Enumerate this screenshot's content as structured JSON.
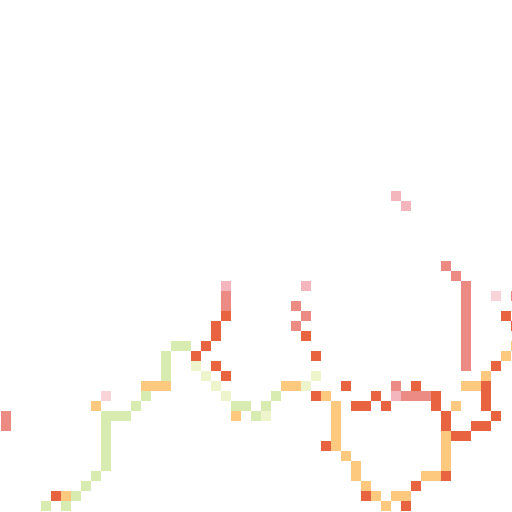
{
  "map": {
    "kind": "pixel raster tile",
    "palette": {
      "light_green": "#d8ebb0",
      "pale_yellow": "#eef4cc",
      "orange": "#fdc97f",
      "red_orange": "#e8633f",
      "salmon": "#ec8b84",
      "pink": "#f3b6bd",
      "pale_pink": "#f8d4d8"
    },
    "routes": [
      {
        "name": "green-route",
        "color": "light_green",
        "cells": [
          [
            4,
            50
          ],
          [
            6,
            50
          ],
          [
            7,
            49
          ],
          [
            8,
            48
          ],
          [
            9,
            47
          ],
          [
            10,
            46
          ],
          [
            10,
            45
          ],
          [
            10,
            44
          ],
          [
            10,
            43
          ],
          [
            10,
            42
          ],
          [
            10,
            41
          ],
          [
            11,
            41
          ],
          [
            12,
            41
          ],
          [
            13,
            40
          ],
          [
            14,
            39
          ],
          [
            16,
            37
          ],
          [
            16,
            36
          ],
          [
            16,
            35
          ],
          [
            17,
            34
          ],
          [
            18,
            34
          ],
          [
            19,
            35
          ],
          [
            20,
            37
          ],
          [
            21,
            38
          ],
          [
            22,
            39
          ],
          [
            23,
            40
          ],
          [
            24,
            40
          ],
          [
            25,
            41
          ],
          [
            26,
            40
          ],
          [
            27,
            39
          ],
          [
            28,
            38
          ]
        ]
      },
      {
        "name": "yellow-route",
        "color": "pale_yellow",
        "cells": [
          [
            19,
            36
          ],
          [
            20,
            37
          ],
          [
            21,
            38
          ],
          [
            22,
            39
          ],
          [
            26,
            41
          ],
          [
            29,
            38
          ],
          [
            30,
            38
          ],
          [
            31,
            37
          ]
        ]
      },
      {
        "name": "orange-route",
        "color": "orange",
        "cells": [
          [
            6,
            49
          ],
          [
            9,
            40
          ],
          [
            14,
            38
          ],
          [
            15,
            38
          ],
          [
            16,
            38
          ],
          [
            23,
            41
          ],
          [
            28,
            38
          ],
          [
            29,
            38
          ],
          [
            32,
            39
          ],
          [
            33,
            40
          ],
          [
            33,
            41
          ],
          [
            33,
            42
          ],
          [
            33,
            43
          ],
          [
            33,
            44
          ],
          [
            34,
            45
          ],
          [
            35,
            46
          ],
          [
            35,
            47
          ],
          [
            36,
            48
          ],
          [
            37,
            49
          ],
          [
            38,
            50
          ],
          [
            39,
            49
          ],
          [
            40,
            49
          ],
          [
            41,
            48
          ],
          [
            42,
            47
          ],
          [
            43,
            47
          ],
          [
            44,
            46
          ],
          [
            44,
            45
          ],
          [
            44,
            44
          ],
          [
            44,
            43
          ],
          [
            44,
            42
          ],
          [
            45,
            40
          ],
          [
            46,
            38
          ],
          [
            47,
            38
          ],
          [
            48,
            37
          ],
          [
            49,
            36
          ],
          [
            50,
            35
          ],
          [
            51,
            34
          ]
        ]
      },
      {
        "name": "red-route",
        "color": "red_orange",
        "cells": [
          [
            5,
            49
          ],
          [
            19,
            35
          ],
          [
            20,
            34
          ],
          [
            21,
            33
          ],
          [
            21,
            32
          ],
          [
            22,
            31
          ],
          [
            21,
            36
          ],
          [
            22,
            37
          ],
          [
            30,
            33
          ],
          [
            31,
            35
          ],
          [
            31,
            39
          ],
          [
            32,
            44
          ],
          [
            34,
            38
          ],
          [
            35,
            40
          ],
          [
            36,
            40
          ],
          [
            37,
            39
          ],
          [
            38,
            40
          ],
          [
            39,
            39
          ],
          [
            41,
            38
          ],
          [
            43,
            39
          ],
          [
            44,
            41
          ],
          [
            44,
            42
          ],
          [
            45,
            43
          ],
          [
            46,
            43
          ],
          [
            47,
            42
          ],
          [
            48,
            42
          ],
          [
            49,
            41
          ],
          [
            48,
            40
          ],
          [
            48,
            39
          ],
          [
            48,
            38
          ],
          [
            43,
            40
          ],
          [
            36,
            49
          ],
          [
            40,
            50
          ],
          [
            41,
            48
          ],
          [
            44,
            47
          ],
          [
            49,
            36
          ],
          [
            50,
            31
          ],
          [
            51,
            32
          ]
        ]
      },
      {
        "name": "salmon-route",
        "color": "salmon",
        "cells": [
          [
            0,
            41
          ],
          [
            0,
            42
          ],
          [
            22,
            29
          ],
          [
            22,
            30
          ],
          [
            29,
            30
          ],
          [
            30,
            31
          ],
          [
            29,
            32
          ],
          [
            44,
            26
          ],
          [
            45,
            27
          ],
          [
            46,
            28
          ],
          [
            46,
            29
          ],
          [
            46,
            30
          ],
          [
            46,
            31
          ],
          [
            46,
            32
          ],
          [
            46,
            33
          ],
          [
            46,
            34
          ],
          [
            46,
            35
          ],
          [
            46,
            36
          ],
          [
            39,
            38
          ],
          [
            40,
            39
          ],
          [
            41,
            39
          ],
          [
            42,
            39
          ],
          [
            51,
            29
          ]
        ]
      },
      {
        "name": "pink-route",
        "color": "pink",
        "cells": [
          [
            22,
            28
          ],
          [
            30,
            28
          ],
          [
            39,
            19
          ],
          [
            40,
            20
          ],
          [
            39,
            39
          ]
        ]
      },
      {
        "name": "pale-pink-route",
        "color": "pale_pink",
        "cells": [
          [
            10,
            39
          ],
          [
            49,
            29
          ]
        ]
      }
    ]
  }
}
